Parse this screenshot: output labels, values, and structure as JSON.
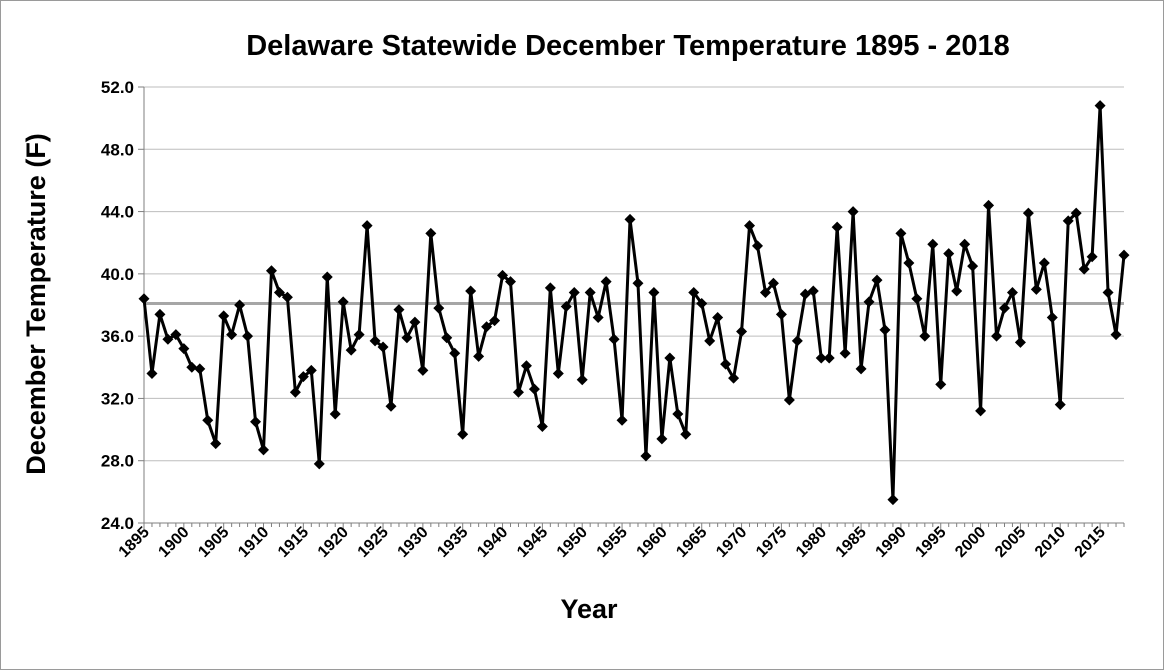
{
  "chart_data": {
    "type": "line",
    "title": "Delaware Statewide December Temperature 1895 - 2018",
    "xlabel": "Year",
    "ylabel": "December Temperature (F)",
    "ylim": [
      24.0,
      52.0
    ],
    "yticks": [
      "24.0",
      "28.0",
      "32.0",
      "36.0",
      "40.0",
      "44.0",
      "48.0",
      "52.0"
    ],
    "xticks": [
      "1895",
      "1900",
      "1905",
      "1910",
      "1915",
      "1920",
      "1925",
      "1930",
      "1935",
      "1940",
      "1945",
      "1950",
      "1955",
      "1960",
      "1965",
      "1970",
      "1975",
      "1980",
      "1985",
      "1990",
      "1995",
      "2000",
      "2005",
      "2010",
      "2015"
    ],
    "grid": true,
    "average_line": 38.1,
    "series": [
      {
        "name": "December Temperature",
        "x_start": 1895,
        "values": [
          38.4,
          33.6,
          37.4,
          35.8,
          36.1,
          35.2,
          34.0,
          33.9,
          30.6,
          29.1,
          37.3,
          36.1,
          38.0,
          36.0,
          30.5,
          28.7,
          40.2,
          38.8,
          38.5,
          32.4,
          33.4,
          33.8,
          27.8,
          39.8,
          31.0,
          38.2,
          35.1,
          36.1,
          43.1,
          35.7,
          35.3,
          31.5,
          37.7,
          35.9,
          36.9,
          33.8,
          42.6,
          37.8,
          35.9,
          34.9,
          29.7,
          38.9,
          34.7,
          36.6,
          37.0,
          39.9,
          39.5,
          32.4,
          34.1,
          32.6,
          30.2,
          39.1,
          33.6,
          37.9,
          38.8,
          33.2,
          38.8,
          37.2,
          39.5,
          35.8,
          30.6,
          43.5,
          39.4,
          28.3,
          38.8,
          29.4,
          34.6,
          31.0,
          29.7,
          38.8,
          38.1,
          35.7,
          37.2,
          34.2,
          33.3,
          36.3,
          43.1,
          41.8,
          38.8,
          39.4,
          37.4,
          31.9,
          35.7,
          38.7,
          38.9,
          34.6,
          34.6,
          43.0,
          34.9,
          44.0,
          33.9,
          38.2,
          39.6,
          36.4,
          25.5,
          42.6,
          40.7,
          38.4,
          36.0,
          41.9,
          32.9,
          41.3,
          38.9,
          41.9,
          40.5,
          31.2,
          44.4,
          36.0,
          37.8,
          38.8,
          35.6,
          43.9,
          39.0,
          40.7,
          37.2,
          31.6,
          43.4,
          43.9,
          40.3,
          41.1,
          50.8,
          38.8,
          36.1,
          41.2
        ]
      }
    ]
  }
}
